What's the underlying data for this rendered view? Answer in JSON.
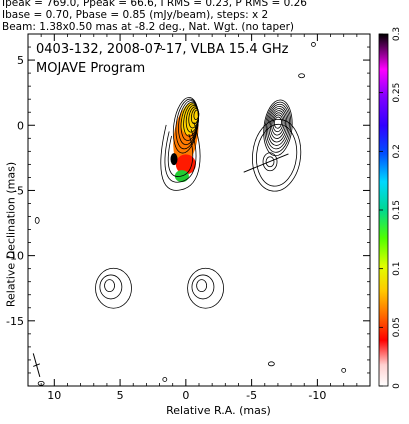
{
  "header": {
    "line1": "Ipeak = 769.0, Ppeak = 66.6, I RMS = 0.23, P RMS = 0.26",
    "line2": "Ibase = 0.70, Pbase = 0.85 (mJy/beam), steps: x 2",
    "line3": "Beam: 1.38x0.50 mas at -8.2 deg., Nat. Wgt. (no taper)"
  },
  "chart_data": {
    "type": "contour",
    "title": "0403-132, 2008-07-17, VLBA 15.4 GHz",
    "subtitle": "MOJAVE Program",
    "xlabel": "Relative R.A. (mas)",
    "ylabel": "Relative Declination (mas)",
    "xlim": [
      12,
      -14
    ],
    "ylim": [
      -20,
      7
    ],
    "x_ticks": [
      10,
      5,
      0,
      -5,
      -10
    ],
    "y_ticks": [
      5,
      0,
      -5,
      -10,
      -15
    ],
    "colorbar": {
      "min": 0,
      "max": 0.3,
      "ticks": [
        0,
        0.05,
        0.1,
        0.15,
        0.2,
        0.25,
        0.3
      ],
      "tick_labels": [
        "0",
        "0.05",
        "0.1",
        "0.15",
        "0.2",
        "0.25",
        "0.3"
      ]
    },
    "components": [
      {
        "name": "core",
        "x": 0,
        "y": 0
      },
      {
        "name": "jet",
        "x": 0.5,
        "y": -3
      },
      {
        "name": "polarization-image",
        "x": -7,
        "y": -2
      },
      {
        "name": "lower-left-blob",
        "x": 5.5,
        "y": -12.5
      },
      {
        "name": "lower-right-blob",
        "x": -1.5,
        "y": -12.5
      }
    ]
  }
}
